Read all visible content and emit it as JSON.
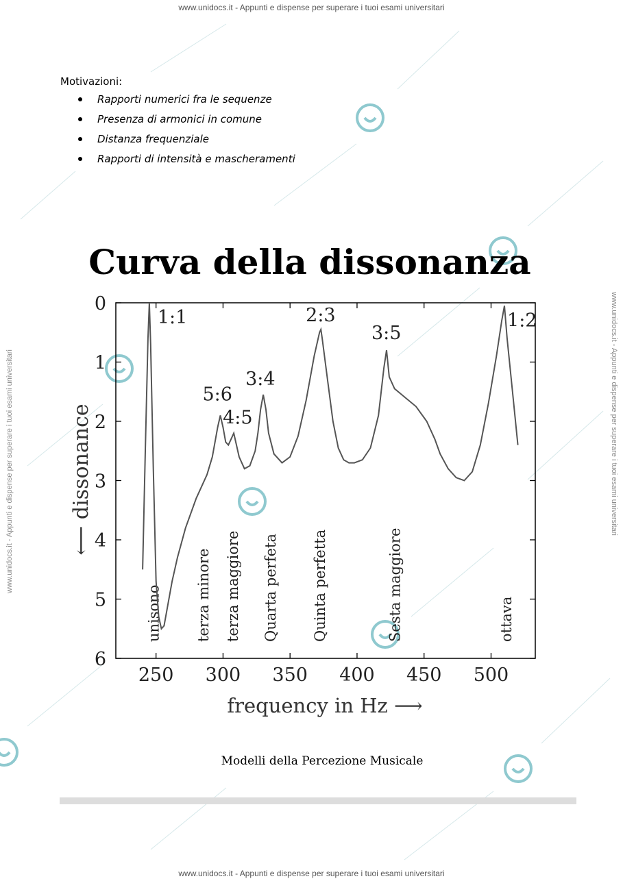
{
  "watermark": {
    "header": "www.unidocs.it - Appunti e dispense per superare i tuoi esami universitari",
    "footer": "www.unidocs.it - Appunti e dispense per superare i tuoi esami universitari",
    "side": "www.unidocs.it - Appunti e dispense per superare i tuoi esami universitari",
    "logo_icon": "unidocs-smile-icon"
  },
  "motivazioni": {
    "title": "Motivazioni:",
    "items": [
      "Rapporti numerici fra le sequenze",
      "Presenza di armonici in comune",
      "Distanza frequenziale",
      "Rapporti di intensità e mascheramenti"
    ]
  },
  "chart_data": {
    "type": "line",
    "title": "Curva della dissonanza",
    "xlabel": "frequency in Hz ⟶",
    "ylabel": "⟵ dissonance",
    "xlim": [
      220,
      533
    ],
    "ylim": [
      0,
      6
    ],
    "y_inverted": true,
    "xticks": [
      250,
      300,
      350,
      400,
      450,
      500
    ],
    "yticks": [
      0,
      1,
      2,
      3,
      4,
      5,
      6
    ],
    "grid": false,
    "series": [
      {
        "x": [
          240,
          242,
          244,
          245,
          246,
          248,
          250,
          252,
          254,
          256,
          258,
          262,
          266,
          272,
          280,
          288,
          292,
          296,
          298,
          300,
          302,
          304,
          306,
          308,
          310,
          312,
          316,
          320,
          324,
          326,
          328,
          330,
          332,
          334,
          338,
          344,
          350,
          356,
          362,
          368,
          372,
          373,
          374,
          378,
          382,
          386,
          390,
          394,
          398,
          404,
          410,
          416,
          420,
          422,
          424,
          428,
          436,
          444,
          452,
          458,
          462,
          468,
          474,
          480,
          486,
          492,
          498,
          504,
          508,
          510,
          512,
          516,
          520
        ],
        "y": [
          4.5,
          2.5,
          0.6,
          0.0,
          0.7,
          2.8,
          4.7,
          5.3,
          5.5,
          5.45,
          5.2,
          4.7,
          4.3,
          3.8,
          3.3,
          2.9,
          2.6,
          2.1,
          1.9,
          2.1,
          2.35,
          2.4,
          2.3,
          2.2,
          2.4,
          2.6,
          2.8,
          2.75,
          2.5,
          2.2,
          1.8,
          1.55,
          1.8,
          2.2,
          2.55,
          2.7,
          2.6,
          2.25,
          1.65,
          0.9,
          0.5,
          0.45,
          0.6,
          1.3,
          2.0,
          2.45,
          2.65,
          2.7,
          2.7,
          2.65,
          2.45,
          1.9,
          1.1,
          0.8,
          1.25,
          1.45,
          1.6,
          1.75,
          2.0,
          2.3,
          2.55,
          2.8,
          2.95,
          3.0,
          2.85,
          2.4,
          1.7,
          0.9,
          0.3,
          0.05,
          0.6,
          1.5,
          2.4
        ]
      }
    ],
    "ratio_labels": [
      {
        "text": "1:1",
        "x": 245,
        "y": 0.0
      },
      {
        "text": "5:6",
        "x": 298,
        "y": 1.9
      },
      {
        "text": "4:5",
        "x": 308,
        "y": 2.2
      },
      {
        "text": "3:4",
        "x": 330,
        "y": 1.55
      },
      {
        "text": "2:3",
        "x": 373,
        "y": 0.45
      },
      {
        "text": "3:5",
        "x": 422,
        "y": 0.8
      },
      {
        "text": "1:2",
        "x": 510,
        "y": 0.05
      }
    ],
    "interval_labels": [
      {
        "text": "unisono",
        "x": 248
      },
      {
        "text": "terza minore",
        "x": 285
      },
      {
        "text": "terza maggiore",
        "x": 307
      },
      {
        "text": "Quarta perfeta",
        "x": 335
      },
      {
        "text": "Quinta perfetta",
        "x": 372
      },
      {
        "text": "Sesta maggiore",
        "x": 428
      },
      {
        "text": "ottava",
        "x": 511
      }
    ]
  },
  "caption": "Modelli della Percezione Musicale"
}
